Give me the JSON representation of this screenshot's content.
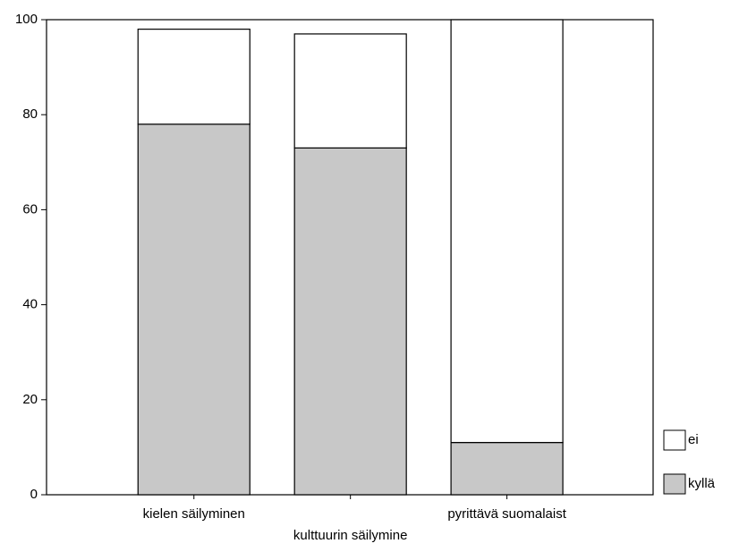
{
  "chart_data": {
    "type": "stacked_bar",
    "categories": [
      "kielen säilyminen",
      "kulttuurin säilymine",
      "pyrittävä suomalaist"
    ],
    "series": [
      {
        "name": "kyllä",
        "color": "#c8c8c8",
        "values": [
          78,
          73,
          11
        ]
      },
      {
        "name": "ei",
        "color": "#ffffff",
        "values": [
          20,
          24,
          89
        ]
      }
    ],
    "ylim": [
      0,
      100
    ],
    "yticks": [
      0,
      20,
      40,
      60,
      80,
      100
    ],
    "grid": false,
    "legend": "right"
  }
}
